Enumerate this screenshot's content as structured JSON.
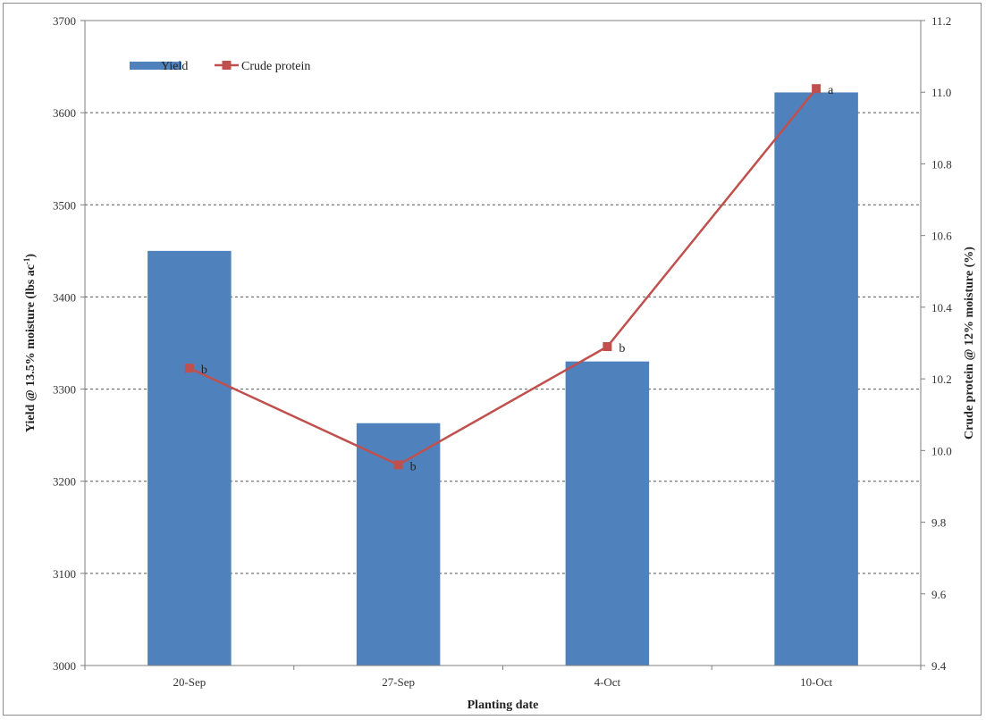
{
  "chart_data": {
    "type": "bar+line",
    "title": "",
    "xlabel": "Planting date",
    "ylabel_left": "Yield @ 13.5% moisture (lbs ac",
    "ylabel_left_sup": "-1",
    "ylabel_left_suffix": ")",
    "ylabel_right": "Crude protein @ 12% moisture (%)",
    "categories": [
      "20-Sep",
      "27-Sep",
      "4-Oct",
      "10-Oct"
    ],
    "y_left": {
      "min": 3000,
      "max": 3700,
      "step": 100,
      "ticks": [
        "3000",
        "3100",
        "3200",
        "3300",
        "3400",
        "3500",
        "3600",
        "3700"
      ]
    },
    "y_right": {
      "min": 9.4,
      "max": 11.2,
      "step": 0.2,
      "ticks": [
        "9.4",
        "9.6",
        "9.8",
        "10.0",
        "10.2",
        "10.4",
        "10.6",
        "10.8",
        "11.0",
        "11.2"
      ]
    },
    "grid": true,
    "legend_position": "top-left",
    "series": [
      {
        "name": "Yield",
        "type": "bar",
        "axis": "left",
        "color": "#4f81bd",
        "values": [
          3450,
          3263,
          3330,
          3622
        ]
      },
      {
        "name": "Crude protein",
        "type": "line",
        "axis": "right",
        "color": "#c0504d",
        "values": [
          10.23,
          9.96,
          10.29,
          11.01
        ],
        "labels": [
          "b",
          "b",
          "b",
          "a"
        ]
      }
    ]
  }
}
